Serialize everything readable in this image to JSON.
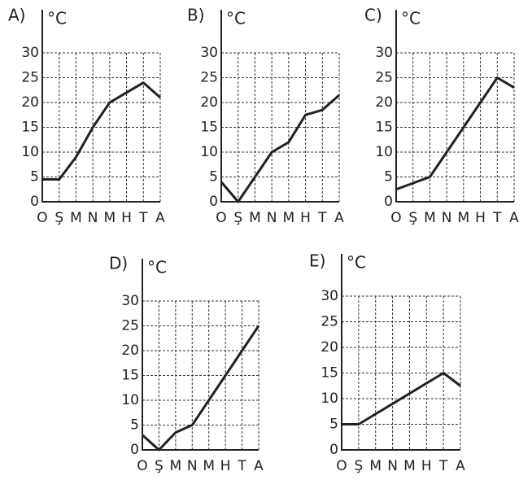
{
  "chart_data": [
    {
      "type": "line",
      "title": "A)",
      "y_label": "°C",
      "categories": [
        "O",
        "Ş",
        "M",
        "N",
        "M",
        "H",
        "T",
        "A"
      ],
      "values": [
        4.5,
        4.5,
        9,
        15,
        20,
        22,
        24,
        21
      ],
      "color": "#222222",
      "ylim": [
        0,
        30
      ],
      "yticks": [
        0,
        5,
        10,
        15,
        20,
        25,
        30
      ],
      "grid": true
    },
    {
      "type": "line",
      "title": "B)",
      "y_label": "°C",
      "categories": [
        "O",
        "Ş",
        "M",
        "N",
        "M",
        "H",
        "T",
        "A"
      ],
      "values": [
        4,
        0,
        5,
        10,
        12,
        17.5,
        18.5,
        21.5
      ],
      "color": "#222222",
      "ylim": [
        0,
        30
      ],
      "yticks": [
        0,
        5,
        10,
        15,
        20,
        25,
        30
      ],
      "grid": true
    },
    {
      "type": "line",
      "title": "C)",
      "y_label": "°C",
      "categories": [
        "O",
        "Ş",
        "M",
        "N",
        "M",
        "H",
        "T",
        "A"
      ],
      "values": [
        2.5,
        3.75,
        5,
        10,
        15,
        20,
        25,
        23
      ],
      "color": "#222222",
      "ylim": [
        0,
        30
      ],
      "yticks": [
        0,
        5,
        10,
        15,
        20,
        25,
        30
      ],
      "grid": true
    },
    {
      "type": "line",
      "title": "D)",
      "y_label": "°C",
      "categories": [
        "O",
        "Ş",
        "M",
        "N",
        "M",
        "H",
        "T",
        "A"
      ],
      "values": [
        3,
        0,
        3.5,
        5,
        10,
        15,
        20,
        25
      ],
      "color": "#222222",
      "ylim": [
        0,
        30
      ],
      "yticks": [
        0,
        5,
        10,
        15,
        20,
        25,
        30
      ],
      "grid": true
    },
    {
      "type": "line",
      "title": "E)",
      "y_label": "°C",
      "categories": [
        "O",
        "Ş",
        "M",
        "N",
        "M",
        "H",
        "T",
        "A"
      ],
      "values": [
        5,
        5,
        7,
        9,
        11,
        13,
        15,
        12.5
      ],
      "color": "#222222",
      "ylim": [
        0,
        30
      ],
      "yticks": [
        0,
        5,
        10,
        15,
        20,
        25,
        30
      ],
      "grid": true
    }
  ]
}
